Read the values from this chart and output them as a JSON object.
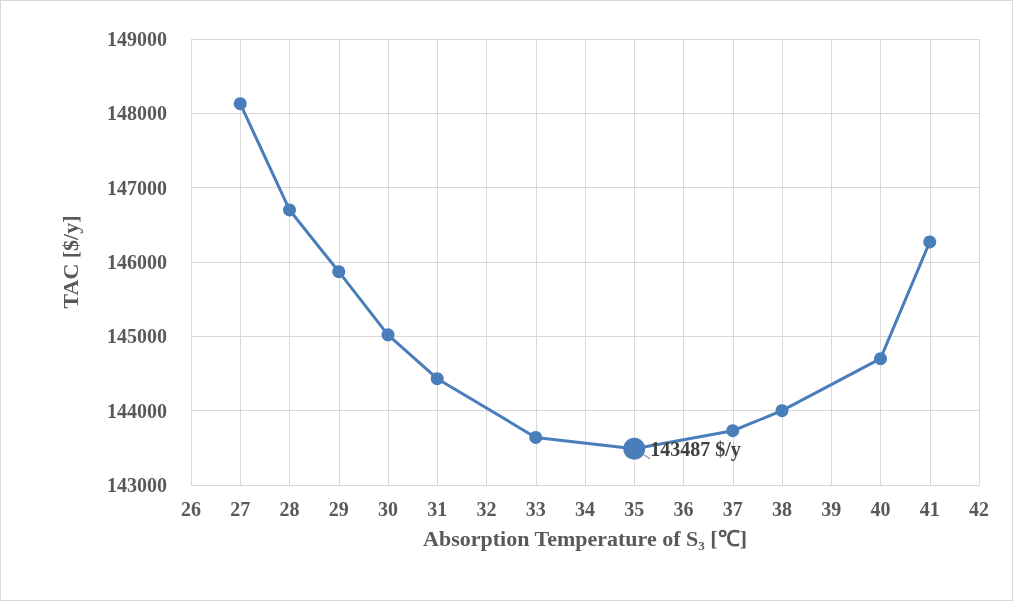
{
  "chart_data": {
    "type": "line",
    "xlabel": "Absorption Temperature of S₃ [℃]",
    "ylabel": "TAC [$/y]",
    "x": [
      27,
      28,
      29,
      30,
      31,
      33,
      35,
      37,
      38,
      40,
      41
    ],
    "series": [
      {
        "color": "#4a7ebb",
        "values": [
          148130,
          146700,
          145870,
          145020,
          144430,
          143640,
          143487,
          143730,
          144000,
          144700,
          146270
        ]
      }
    ],
    "xlim": [
      26,
      42
    ],
    "xticks": [
      26,
      27,
      28,
      29,
      30,
      31,
      32,
      33,
      34,
      35,
      36,
      37,
      38,
      39,
      40,
      41,
      42
    ],
    "ylim": [
      143000,
      149000
    ],
    "yticks": [
      143000,
      144000,
      145000,
      146000,
      147000,
      148000,
      149000
    ],
    "grid": true,
    "marker": "circle",
    "line_style": "solid",
    "annotations": [
      {
        "text": "143487 $/y",
        "x": 35,
        "y": 143487
      }
    ]
  }
}
